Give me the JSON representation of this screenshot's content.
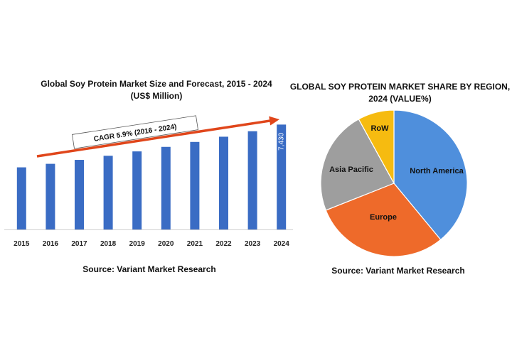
{
  "chart_data": [
    {
      "type": "bar",
      "title": "Global Soy Protein Market Size and Forecast, 2015 - 2024",
      "subtitle": "(US$ Million)",
      "categories": [
        "2015",
        "2016",
        "2017",
        "2018",
        "2019",
        "2020",
        "2021",
        "2022",
        "2023",
        "2024"
      ],
      "values": [
        4400,
        4650,
        4930,
        5220,
        5530,
        5850,
        6200,
        6570,
        6960,
        7430
      ],
      "data_labels": {
        "2024": "7,430"
      },
      "annotation": "CAGR 5.9% (2016 - 2024)",
      "ylim": [
        0,
        7800
      ],
      "bar_color": "#3a6cc4",
      "arrow_color": "#e0461b",
      "source": "Source: Variant Market Research"
    },
    {
      "type": "pie",
      "title": "GLOBAL SOY PROTEIN MARKET SHARE BY REGION, 2024 (VALUE%)",
      "title_line1": "GLOBAL SOY PROTEIN MARKET SHARE BY REGION,",
      "title_line2": "2024 (VALUE%)",
      "slices": [
        {
          "label": "North America",
          "value": 39,
          "color": "#4f8fdc"
        },
        {
          "label": "Europe",
          "value": 30,
          "color": "#ee6a2a"
        },
        {
          "label": "Asia Pacific",
          "value": 23,
          "color": "#9e9e9e"
        },
        {
          "label": "RoW",
          "value": 8,
          "color": "#f6bb10"
        }
      ],
      "source": "Source: Variant Market Research"
    }
  ]
}
